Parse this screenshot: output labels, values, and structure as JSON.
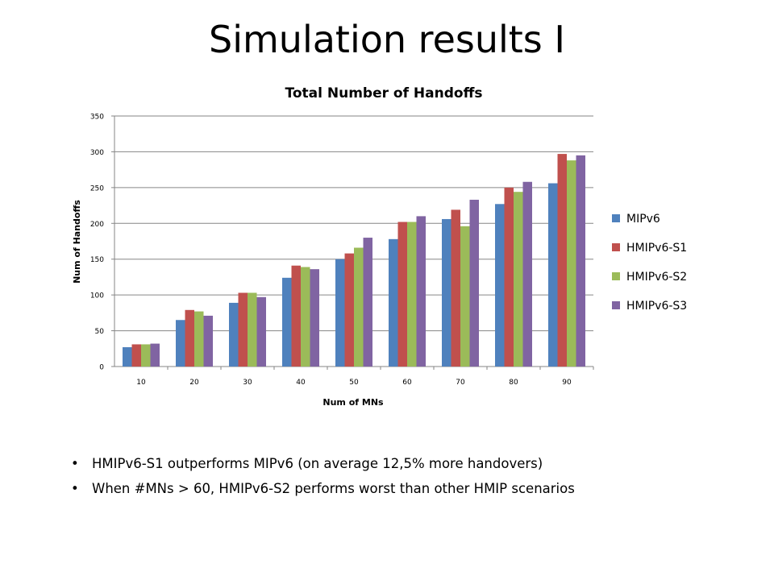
{
  "slide": {
    "title": "Simulation results I",
    "bullets": [
      "HMIPv6-S1 outperforms MIPv6  (on average 12,5% more handovers)",
      "When #MNs > 60,  HMIPv6-S2 performs worst than other HMIP scenarios"
    ]
  },
  "chart_data": {
    "type": "bar",
    "title": "Total Number of Handoffs",
    "xlabel": "Num of MNs",
    "ylabel": "Num of Handoffs",
    "categories": [
      "10",
      "20",
      "30",
      "40",
      "50",
      "60",
      "70",
      "80",
      "90"
    ],
    "ylim": [
      0,
      350
    ],
    "yticks": [
      "0",
      "50",
      "100",
      "150",
      "200",
      "250",
      "300",
      "350"
    ],
    "grid": true,
    "legend_position": "right",
    "series": [
      {
        "name": "MIPv6",
        "color": "#4f81bd",
        "values": [
          27,
          65,
          89,
          124,
          150,
          178,
          206,
          227,
          256
        ]
      },
      {
        "name": "HMIPv6-S1",
        "color": "#c0504d",
        "values": [
          31,
          79,
          103,
          141,
          158,
          202,
          219,
          250,
          297
        ]
      },
      {
        "name": "HMIPv6-S2",
        "color": "#9bbb59",
        "values": [
          31,
          77,
          103,
          139,
          166,
          202,
          196,
          244,
          288
        ]
      },
      {
        "name": "HMIPv6-S3",
        "color": "#8064a2",
        "values": [
          32,
          71,
          97,
          136,
          180,
          210,
          233,
          258,
          295
        ]
      }
    ]
  }
}
